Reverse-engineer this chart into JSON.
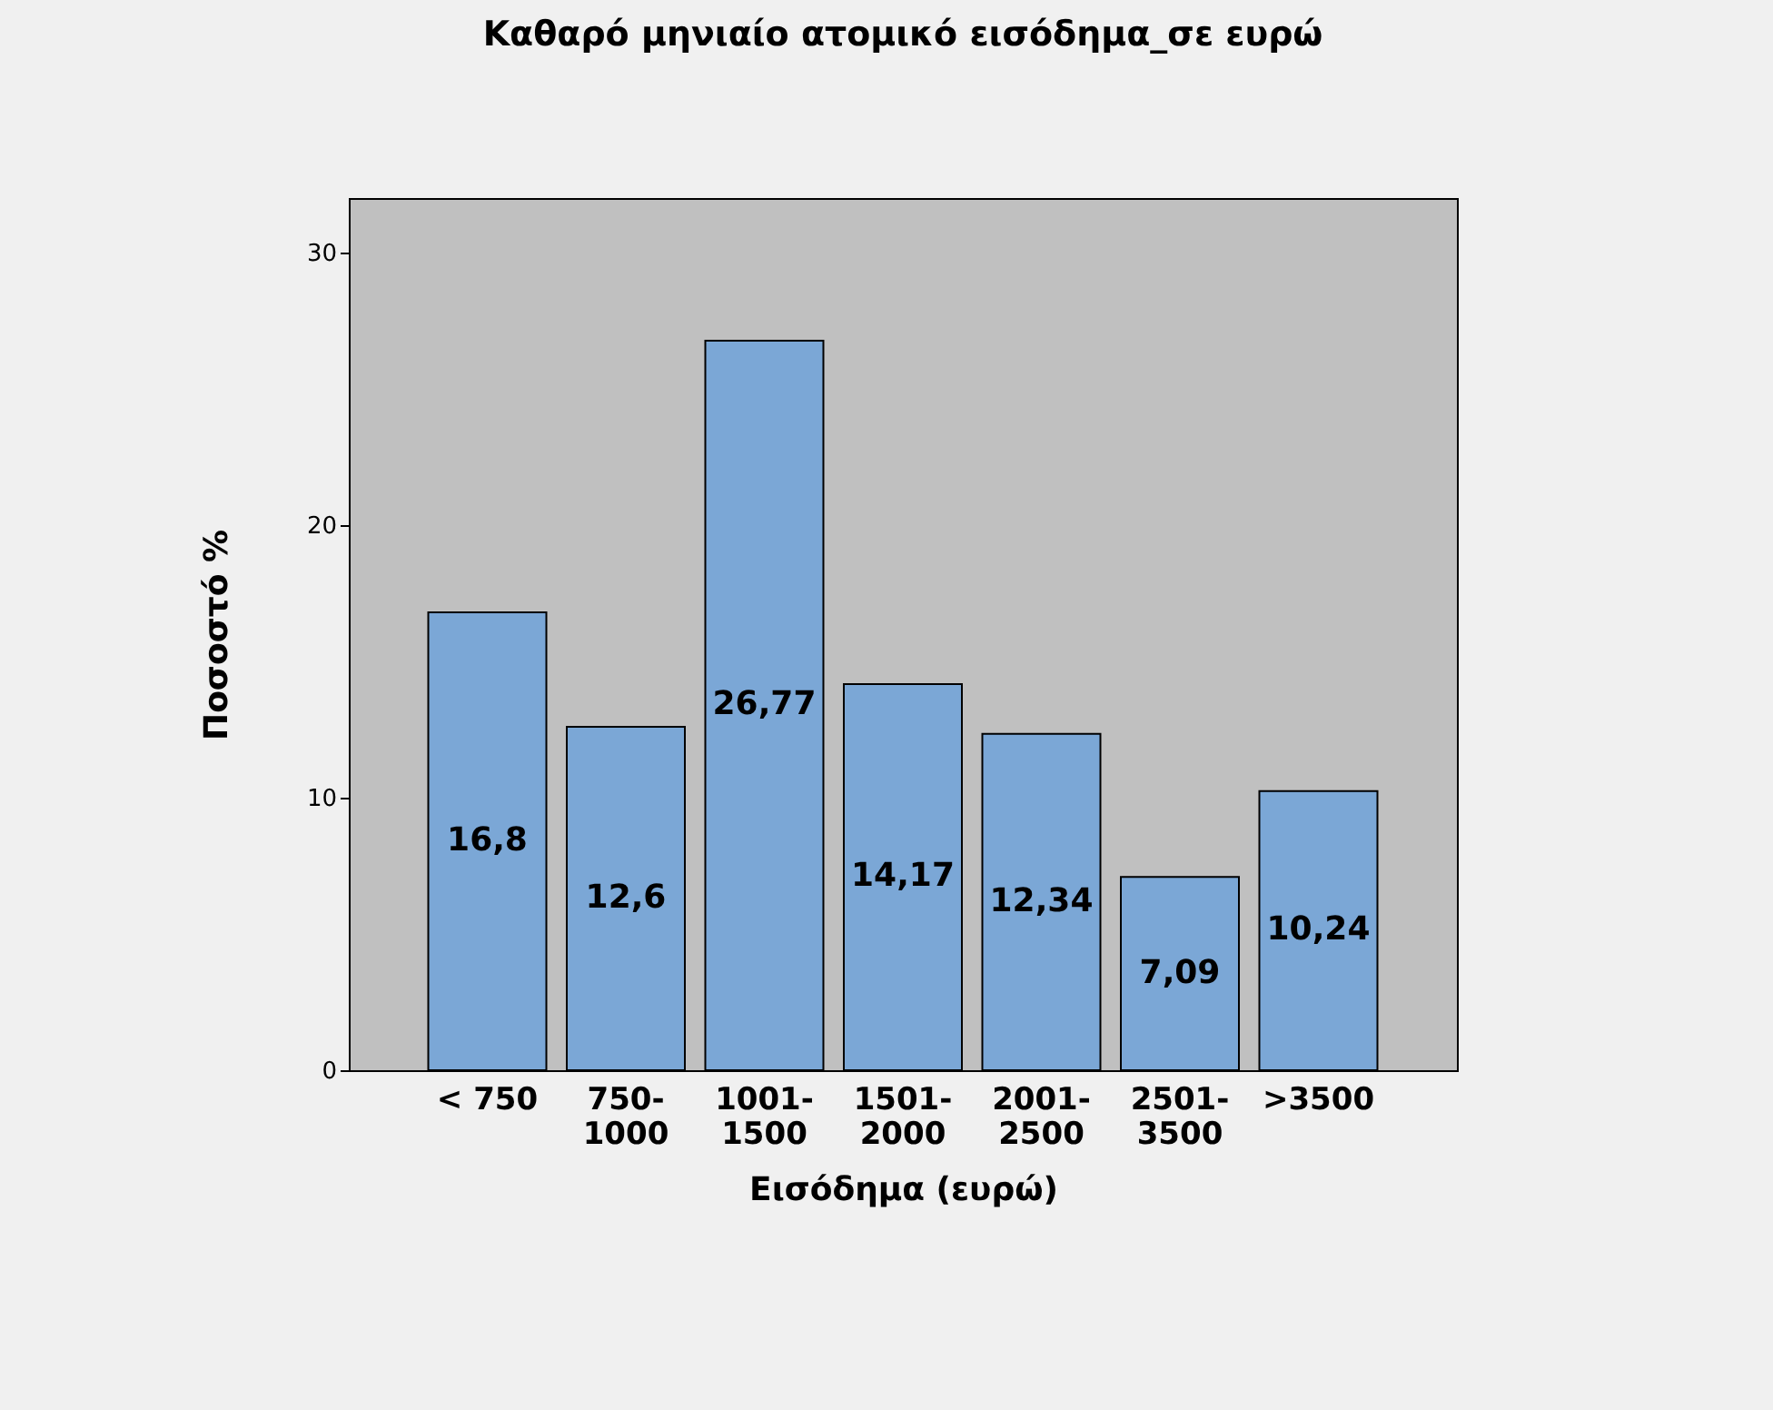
{
  "chart_data": {
    "type": "bar",
    "title": "Καθαρό μηνιαίο ατομικό εισόδημα_σε ευρώ",
    "xlabel": "Εισόδημα (ευρώ)",
    "ylabel": "Ποσοστό %",
    "categories": [
      "< 750",
      "750-1000",
      "1001-1500",
      "1501-2000",
      "2001-2500",
      "2501-3500",
      ">3500"
    ],
    "values": [
      16.8,
      12.6,
      26.77,
      14.17,
      12.34,
      7.09,
      10.24
    ],
    "value_labels": [
      "16,8",
      "12,6",
      "26,77",
      "14,17",
      "12,34",
      "7,09",
      "10,24"
    ],
    "color": "#7ba7d6",
    "ylim": [
      0,
      32
    ],
    "yticks": [
      0,
      10,
      20,
      30
    ],
    "grid": false
  }
}
